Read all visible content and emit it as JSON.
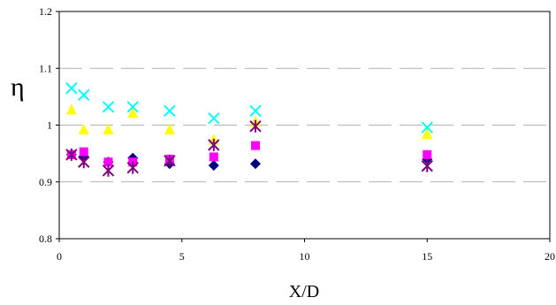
{
  "chart_data": {
    "type": "scatter",
    "title": "",
    "xlabel": "X/D",
    "ylabel": "η",
    "xlim": [
      0,
      20
    ],
    "ylim": [
      0.8,
      1.2
    ],
    "x_ticks": [
      "0",
      "5",
      "10",
      "15",
      "20"
    ],
    "y_ticks": [
      "0.8",
      "0.9",
      "1",
      "1.1",
      "1.2"
    ],
    "grid": "horizontal-dashed",
    "legend": "none",
    "series": [
      {
        "marker": "diamond",
        "color": "#000080",
        "points": [
          [
            0.5,
            0.948
          ],
          [
            1,
            0.945
          ],
          [
            2,
            0.935
          ],
          [
            3,
            0.942
          ],
          [
            4.5,
            0.932
          ],
          [
            6.3,
            0.929
          ],
          [
            8,
            0.932
          ],
          [
            15,
            0.94
          ]
        ]
      },
      {
        "marker": "square",
        "color": "#ff00ff",
        "points": [
          [
            0.5,
            0.948
          ],
          [
            1,
            0.953
          ],
          [
            2,
            0.935
          ],
          [
            3,
            0.935
          ],
          [
            4.5,
            0.94
          ],
          [
            6.3,
            0.944
          ],
          [
            8,
            0.964
          ],
          [
            15,
            0.948
          ]
        ]
      },
      {
        "marker": "triangle",
        "color": "#ffff00",
        "points": [
          [
            0.5,
            1.028
          ],
          [
            1,
            0.993
          ],
          [
            2,
            0.993
          ],
          [
            3,
            1.022
          ],
          [
            4.5,
            0.993
          ],
          [
            6.3,
            0.975
          ],
          [
            8,
            1.007
          ],
          [
            15,
            0.985
          ]
        ]
      },
      {
        "marker": "x",
        "color": "#00ffff",
        "points": [
          [
            0.5,
            1.065
          ],
          [
            1,
            1.053
          ],
          [
            2,
            1.032
          ],
          [
            3,
            1.032
          ],
          [
            4.5,
            1.025
          ],
          [
            6.3,
            1.012
          ],
          [
            8,
            1.025
          ],
          [
            15,
            0.996
          ]
        ]
      },
      {
        "marker": "star",
        "color": "#800080",
        "points": [
          [
            0.5,
            0.948
          ],
          [
            1,
            0.935
          ],
          [
            2,
            0.92
          ],
          [
            3,
            0.925
          ],
          [
            4.5,
            0.937
          ],
          [
            6.3,
            0.965
          ],
          [
            8,
            0.998
          ],
          [
            15,
            0.928
          ]
        ]
      }
    ]
  }
}
